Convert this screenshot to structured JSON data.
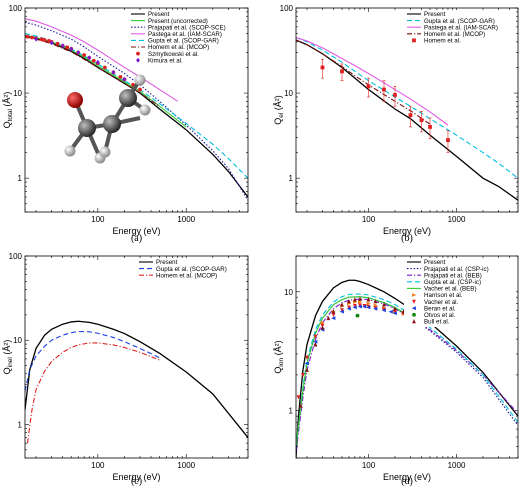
{
  "chart_data": [
    {
      "type": "line",
      "caption": "(a)",
      "xlabel": "Energy (eV)",
      "ylabel": "Q",
      "ylabel_sub": "total",
      "ylabel_unit": " (Å²)",
      "xscale": "log",
      "yscale": "log",
      "xlim": [
        15,
        5000
      ],
      "ylim": [
        0.4,
        100
      ],
      "xticks": [
        {
          "v": 100,
          "label": "100"
        },
        {
          "v": 1000,
          "label": "1000"
        }
      ],
      "yticks": [
        {
          "v": 1,
          "label": "1"
        },
        {
          "v": 10,
          "label": "10"
        },
        {
          "v": 100,
          "label": "100"
        }
      ],
      "legend_position": "top-right",
      "has_molecule": true,
      "series": [
        {
          "name": "Present",
          "color": "#000000",
          "style": "solid",
          "x": [
            15,
            20,
            30,
            50,
            70,
            100,
            200,
            300,
            500,
            1000,
            2000,
            3000,
            5000
          ],
          "y": [
            47,
            44,
            39,
            31,
            25.5,
            20,
            13,
            10,
            6.5,
            3.7,
            1.9,
            1.2,
            0.6
          ]
        },
        {
          "name": "Present (uncorrected)",
          "color": "#33cc33",
          "style": "solid",
          "x": [
            15,
            20,
            30,
            50,
            70,
            100,
            200,
            300,
            500,
            1000
          ],
          "y": [
            48,
            45,
            40,
            32,
            26.5,
            21,
            13.5,
            10.5,
            7,
            4
          ]
        },
        {
          "name": "Prajapati et al. (SCOP-SCE)",
          "color": "#1a1aa0",
          "style": "dot",
          "x": [
            15,
            20,
            30,
            50,
            70,
            100,
            200,
            300,
            500,
            1000,
            2000,
            3000,
            5000
          ],
          "y": [
            68,
            63,
            54,
            43,
            35,
            27,
            17,
            12.5,
            8,
            4.2,
            2.1,
            1.3,
            0.55
          ]
        },
        {
          "name": "Pastega et al. (IAM-SCAR)",
          "color": "#e05ce0",
          "style": "solid",
          "x": [
            15,
            20,
            30,
            50,
            70,
            100,
            200,
            300,
            500,
            800
          ],
          "y": [
            75,
            70,
            60,
            48,
            40,
            32,
            20,
            15.5,
            11,
            8
          ]
        },
        {
          "name": "Gupta et al. (SCOP-GAR)",
          "color": "#00bfe0",
          "style": "dash",
          "x": [
            15,
            20,
            30,
            50,
            70,
            100,
            200,
            300,
            500,
            1000,
            2000,
            3000,
            5000
          ],
          "y": [
            50,
            47,
            41,
            33,
            27.5,
            22,
            14,
            11,
            7.5,
            4.4,
            2.5,
            1.7,
            1.0
          ]
        },
        {
          "name": "Homem et al. (MCOP)",
          "color": "#7a0f0f",
          "style": "dashdot",
          "x": [
            15,
            20,
            30,
            50,
            70,
            100,
            200,
            300,
            500
          ],
          "y": [
            46,
            43,
            38,
            30.5,
            25,
            20,
            13,
            10,
            7
          ]
        },
        {
          "name": "Szmytkowski et al.",
          "color": "#e02020",
          "style": "marker",
          "marker": "circle",
          "x": [
            16,
            18,
            20,
            23,
            25,
            28,
            30,
            35,
            40,
            45,
            50,
            60,
            70,
            80,
            90,
            100,
            120,
            150,
            180,
            200,
            250,
            300
          ],
          "y": [
            46,
            45,
            44,
            43,
            42,
            41,
            40,
            38,
            36,
            34.5,
            33,
            30,
            28,
            26,
            24,
            22.5,
            20,
            17.5,
            15.5,
            14.5,
            12.5,
            11
          ]
        },
        {
          "name": "Kimura et al.",
          "color": "#7a1ad0",
          "style": "marker",
          "marker": "diamond",
          "x": [
            20,
            30,
            40,
            50,
            60,
            80,
            100,
            150,
            200
          ],
          "y": [
            43,
            39,
            36,
            33,
            30,
            26,
            23,
            17.5,
            14.5
          ]
        }
      ]
    },
    {
      "type": "line",
      "caption": "(b)",
      "xlabel": "Energy (eV)",
      "ylabel": "Q",
      "ylabel_sub": "el",
      "ylabel_unit": " (Å²)",
      "xscale": "log",
      "yscale": "log",
      "xlim": [
        15,
        5000
      ],
      "ylim": [
        0.4,
        100
      ],
      "xticks": [
        {
          "v": 100,
          "label": "100"
        },
        {
          "v": 1000,
          "label": "1000"
        }
      ],
      "yticks": [
        {
          "v": 1,
          "label": "1"
        },
        {
          "v": 10,
          "label": "10"
        },
        {
          "v": 100,
          "label": "100"
        }
      ],
      "legend_position": "top-right",
      "series": [
        {
          "name": "Present",
          "color": "#000000",
          "style": "solid",
          "x": [
            15,
            20,
            30,
            50,
            70,
            100,
            200,
            300,
            500,
            1000,
            2000,
            3000,
            5000
          ],
          "y": [
            42,
            37,
            29,
            20,
            15,
            11,
            6.5,
            5,
            3.2,
            1.8,
            1.0,
            0.8,
            0.55
          ]
        },
        {
          "name": "Gupta et al. (SCOP-GAR)",
          "color": "#00bfe0",
          "style": "dash",
          "x": [
            15,
            20,
            30,
            50,
            70,
            100,
            200,
            300,
            500,
            1000,
            2000,
            3000,
            5000
          ],
          "y": [
            45,
            40,
            32,
            23,
            18,
            14,
            9,
            7,
            5,
            3.2,
            2,
            1.5,
            1.0
          ]
        },
        {
          "name": "Pastega et al. (IAM-SCAR)",
          "color": "#e05ce0",
          "style": "solid",
          "x": [
            15,
            20,
            30,
            50,
            70,
            100,
            200,
            300,
            500,
            800
          ],
          "y": [
            45,
            41,
            34,
            25.5,
            21,
            17,
            11,
            8.5,
            6,
            4.2
          ]
        },
        {
          "name": "Homem et al. (MCOP)",
          "color": "#7a0f0f",
          "style": "dashdot",
          "x": [
            15,
            20,
            30,
            50,
            70,
            100,
            200,
            300,
            500
          ],
          "y": [
            42,
            37,
            29,
            20.5,
            16,
            12.5,
            8,
            6.2,
            4.3
          ]
        },
        {
          "name": "Homem et al.",
          "color": "#e02020",
          "style": "marker",
          "marker": "square",
          "x": [
            30,
            50,
            100,
            150,
            200,
            300,
            400,
            500,
            800
          ],
          "y": [
            20,
            18,
            12,
            11,
            9.5,
            5.5,
            4.8,
            4.0,
            2.8
          ],
          "err": [
            5,
            4,
            3,
            3,
            2.5,
            1.5,
            1.3,
            1.1,
            0.8
          ]
        }
      ]
    },
    {
      "type": "line",
      "caption": "(c)",
      "xlabel": "Energy (eV)",
      "ylabel": "Q",
      "ylabel_sub": "inel",
      "ylabel_unit": " (Å²)",
      "xscale": "log",
      "yscale": "log",
      "xlim": [
        15,
        5000
      ],
      "ylim": [
        0.4,
        100
      ],
      "xticks": [
        {
          "v": 100,
          "label": "100"
        },
        {
          "v": 1000,
          "label": "1000"
        }
      ],
      "yticks": [
        {
          "v": 1,
          "label": "1"
        },
        {
          "v": 10,
          "label": "10"
        },
        {
          "v": 100,
          "label": "100"
        }
      ],
      "legend_position": "top-right",
      "series": [
        {
          "name": "Present",
          "color": "#000000",
          "style": "solid",
          "x": [
            15,
            17,
            20,
            25,
            30,
            40,
            50,
            60,
            80,
            100,
            150,
            200,
            300,
            500,
            1000,
            2000,
            5000
          ],
          "y": [
            1.5,
            4.5,
            8,
            11.5,
            13.5,
            15.5,
            16.5,
            16.8,
            16.3,
            15.5,
            13.5,
            12,
            9.6,
            7,
            4.2,
            2.3,
            0.7
          ]
        },
        {
          "name": "Gupta et al. (SCOP-GAR)",
          "color": "#1a3fe0",
          "style": "dash",
          "x": [
            15,
            17,
            20,
            25,
            30,
            40,
            50,
            60,
            80,
            100,
            150,
            200,
            300,
            500
          ],
          "y": [
            2.5,
            4.5,
            6.5,
            8.5,
            10,
            11.5,
            12.3,
            12.7,
            12.6,
            12.1,
            10.8,
            9.6,
            8,
            6.2
          ]
        },
        {
          "name": "Homem et al. (MCOP)",
          "color": "#e02020",
          "style": "dashdot",
          "x": [
            16,
            18,
            20,
            25,
            30,
            40,
            50,
            60,
            80,
            100,
            150,
            200,
            300,
            500
          ],
          "y": [
            0.6,
            1.5,
            2.6,
            4.3,
            5.6,
            7.2,
            8.2,
            8.8,
            9.3,
            9.3,
            8.8,
            8.2,
            7.2,
            5.8
          ]
        }
      ]
    },
    {
      "type": "line",
      "caption": "(d)",
      "xlabel": "Energy (eV)",
      "ylabel": "Q",
      "ylabel_sub": "ion",
      "ylabel_unit": " (Å²)",
      "xscale": "log",
      "yscale": "log",
      "xlim": [
        15,
        5000
      ],
      "ylim": [
        0.4,
        20
      ],
      "xticks": [
        {
          "v": 100,
          "label": "100"
        },
        {
          "v": 1000,
          "label": "1000"
        }
      ],
      "yticks": [
        {
          "v": 1,
          "label": "1"
        },
        {
          "v": 10,
          "label": "10"
        }
      ],
      "legend_position": "top-right",
      "series": [
        {
          "name": "Present",
          "color": "#000000",
          "style": "solid",
          "x": [
            15,
            16,
            18,
            20,
            25,
            30,
            40,
            50,
            60,
            70,
            80,
            100,
            150,
            200,
            300,
            500,
            1000,
            2000,
            5000
          ],
          "y": [
            0.4,
            0.9,
            2.2,
            3.6,
            6.3,
            8.3,
            10.8,
            12,
            12.5,
            12.5,
            12.2,
            11.5,
            10,
            8.8,
            7.2,
            5.5,
            3.5,
            2.1,
            0.9
          ]
        },
        {
          "name": "Prajapati et al. (CSP-ic)",
          "color": "#1a1aa0",
          "style": "dot",
          "x": [
            15,
            18,
            20,
            25,
            30,
            40,
            50,
            60,
            80,
            100,
            150,
            200,
            300,
            500,
            1000,
            2000,
            5000
          ],
          "y": [
            0.5,
            1.5,
            2.5,
            4.5,
            6,
            7.8,
            8.6,
            9,
            9.1,
            8.9,
            8.1,
            7.3,
            6.1,
            4.7,
            3.1,
            1.9,
            0.75
          ]
        },
        {
          "name": "Prajapati et al. (BEB)",
          "color": "#7a1ad0",
          "style": "dashdot",
          "x": [
            15,
            18,
            20,
            25,
            30,
            40,
            50,
            60,
            80,
            100,
            150,
            200,
            300,
            500,
            1000,
            2000,
            5000
          ],
          "y": [
            0.45,
            1.3,
            2.2,
            4,
            5.5,
            7.2,
            8.1,
            8.5,
            8.7,
            8.6,
            7.9,
            7.2,
            6.1,
            4.8,
            3.2,
            2.0,
            0.95
          ]
        },
        {
          "name": "Gupta et al. (CSP-ic)",
          "color": "#00bfe0",
          "style": "dash",
          "x": [
            15,
            18,
            20,
            25,
            30,
            40,
            50,
            60,
            80,
            100,
            150,
            200,
            300,
            500,
            1000,
            2000,
            5000
          ],
          "y": [
            0.5,
            1.6,
            2.7,
            4.8,
            6.4,
            8.2,
            9.1,
            9.5,
            9.6,
            9.4,
            8.6,
            7.8,
            6.5,
            5.0,
            3.3,
            2.0,
            0.8
          ]
        },
        {
          "name": "Vacher et al. (BEB)",
          "color": "#33cc33",
          "style": "solid",
          "x": [
            15,
            18,
            20,
            25,
            30,
            40,
            50,
            60,
            80,
            100,
            150,
            200,
            300
          ],
          "y": [
            0.5,
            1.5,
            2.5,
            4.5,
            6,
            7.8,
            8.6,
            9,
            9.1,
            8.9,
            8.1,
            7.4,
            6.2
          ]
        },
        {
          "name": "Harrison et al.",
          "color": "#f08020",
          "style": "marker",
          "marker": "tri-right",
          "x": [
            30,
            40,
            50,
            60,
            70,
            80,
            100,
            120,
            150,
            200,
            250,
            300
          ],
          "y": [
            5.5,
            6.8,
            7.6,
            8.0,
            8.2,
            8.2,
            8.0,
            7.7,
            7.3,
            6.8,
            6.5,
            6.2
          ]
        },
        {
          "name": "Vacher et al.",
          "color": "#e02020",
          "style": "marker",
          "marker": "tri-down",
          "x": [
            16,
            18,
            20,
            25,
            30,
            40,
            50,
            60,
            70,
            80,
            90,
            100,
            120,
            150,
            200,
            250,
            300
          ],
          "y": [
            1.3,
            2,
            2.8,
            4.2,
            5.2,
            6.4,
            7.0,
            7.4,
            7.6,
            7.7,
            7.6,
            7.5,
            7.3,
            7.1,
            6.8,
            6.6,
            6.3
          ]
        },
        {
          "name": "Beran et al.",
          "color": "#1a3fe0",
          "style": "marker",
          "marker": "tri-left",
          "x": [
            20,
            25,
            30,
            40,
            50,
            60,
            70,
            80,
            90,
            100,
            120,
            150,
            180,
            200
          ],
          "y": [
            2.5,
            3.8,
            4.8,
            6.0,
            6.8,
            7.2,
            7.4,
            7.5,
            7.5,
            7.4,
            7.2,
            7.0,
            6.8,
            6.6
          ]
        },
        {
          "name": "Otvos et al.",
          "color": "#118811",
          "style": "marker",
          "marker": "circle",
          "x": [
            75
          ],
          "y": [
            6.3
          ]
        },
        {
          "name": "Bull et al.",
          "color": "#8b1010",
          "style": "marker",
          "marker": "tri-up",
          "x": [
            17,
            20,
            25,
            30,
            35,
            40,
            50,
            60,
            70,
            80,
            100,
            120,
            150,
            200,
            250,
            300
          ],
          "y": [
            1.1,
            2.2,
            3.6,
            5.0,
            6.0,
            6.8,
            7.8,
            8.3,
            8.6,
            8.7,
            8.6,
            8.3,
            7.8,
            7.2,
            6.8,
            6.4
          ]
        }
      ]
    }
  ]
}
